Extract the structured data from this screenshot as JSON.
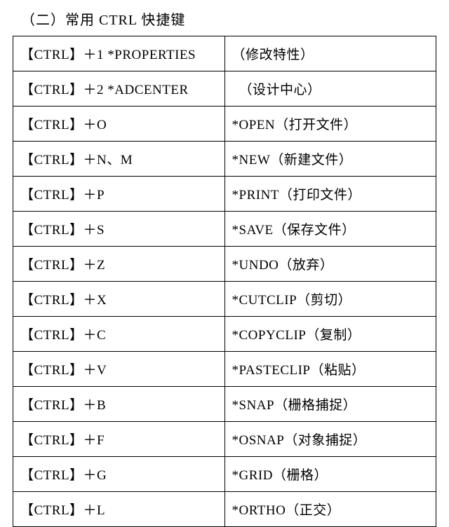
{
  "title": "（二）常用 CTRL 快捷键",
  "table": {
    "columns": [
      "shortcut",
      "description"
    ],
    "col_widths": [
      "50%",
      "50%"
    ],
    "border_color": "#000000",
    "background_color": "#ffffff",
    "font_size": 19,
    "rows": [
      {
        "shortcut": "【CTRL】＋1 *PROPERTIES",
        "description": "（修改特性）",
        "desc_indent": false
      },
      {
        "shortcut": "【CTRL】＋2 *ADCENTER",
        "description": "（设计中心）",
        "desc_indent": true
      },
      {
        "shortcut": "【CTRL】＋O",
        "description": "*OPEN（打开文件）",
        "desc_indent": false
      },
      {
        "shortcut": "【CTRL】＋N、M",
        "description": "*NEW（新建文件）",
        "desc_indent": false
      },
      {
        "shortcut": "【CTRL】＋P",
        "description": "*PRINT（打印文件）",
        "desc_indent": false
      },
      {
        "shortcut": "【CTRL】＋S",
        "description": "*SAVE（保存文件）",
        "desc_indent": false
      },
      {
        "shortcut": "【CTRL】＋Z",
        "description": "*UNDO（放弃）",
        "desc_indent": false
      },
      {
        "shortcut": "【CTRL】＋X",
        "description": "*CUTCLIP（剪切）",
        "desc_indent": false
      },
      {
        "shortcut": "【CTRL】＋C",
        "description": "*COPYCLIP（复制）",
        "desc_indent": false
      },
      {
        "shortcut": "【CTRL】＋V",
        "description": "*PASTECLIP（粘贴）",
        "desc_indent": false
      },
      {
        "shortcut": "【CTRL】＋B",
        "description": "*SNAP（栅格捕捉）",
        "desc_indent": false
      },
      {
        "shortcut": "【CTRL】＋F",
        "description": "*OSNAP（对象捕捉）",
        "desc_indent": false
      },
      {
        "shortcut": "【CTRL】＋G",
        "description": "*GRID（栅格）",
        "desc_indent": false
      },
      {
        "shortcut": "【CTRL】＋L",
        "description": "*ORTHO（正交）",
        "desc_indent": false
      }
    ]
  }
}
